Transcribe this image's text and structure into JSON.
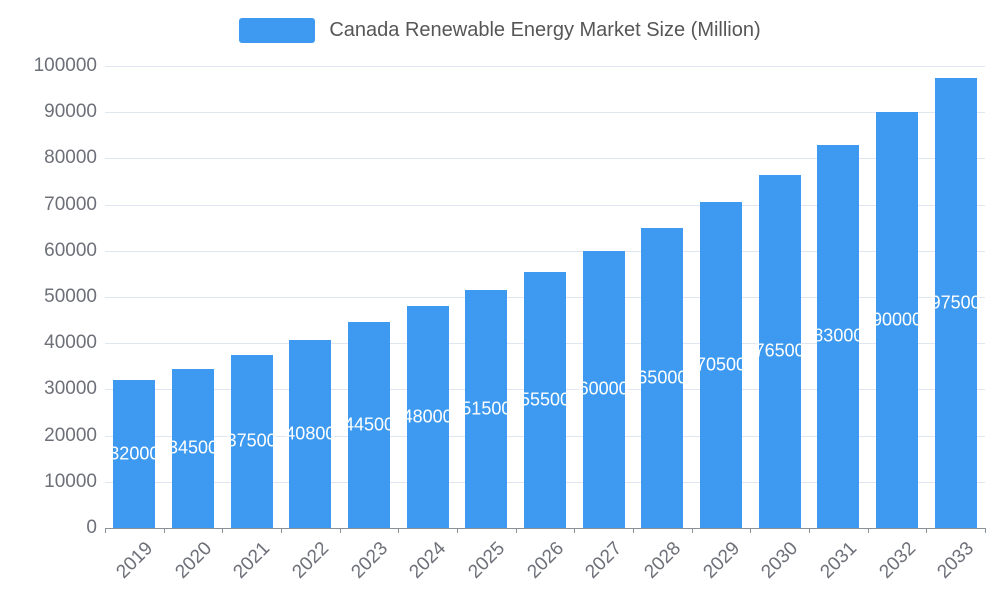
{
  "chart_data": {
    "type": "bar",
    "title": "Canada Renewable Energy Market Size (Million)",
    "legend": [
      "Canada Renewable Energy Market Size (Million)"
    ],
    "categories": [
      "2019",
      "2020",
      "2021",
      "2022",
      "2023",
      "2024",
      "2025",
      "2026",
      "2027",
      "2028",
      "2029",
      "2030",
      "2031",
      "2032",
      "2033"
    ],
    "values": [
      32000,
      34500,
      37500,
      40800,
      44500,
      48000,
      51500,
      55500,
      60000,
      65000,
      70500,
      76500,
      83000,
      90000,
      97500
    ],
    "xlabel": "",
    "ylabel": "",
    "ylim": [
      0,
      100000
    ],
    "y_tick_step": 10000,
    "grid": true,
    "legend_position": "top",
    "bar_color": "#3D9AF0",
    "value_label_color": "#ffffff",
    "axis_text_color": "#6E7079",
    "grid_color": "#E0E6F1"
  },
  "legend": {
    "label": "Canada Renewable Energy Market Size (Million)"
  }
}
